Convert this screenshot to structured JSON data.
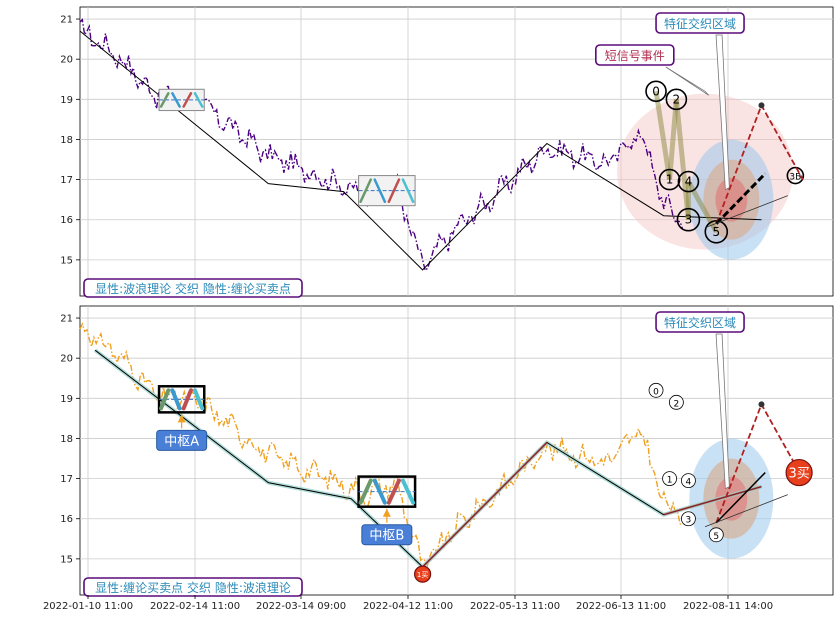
{
  "chart_data": [
    {
      "type": "line",
      "panel": "top",
      "ylim": [
        14.1,
        21.3
      ],
      "yticks": [
        15,
        16,
        17,
        18,
        19,
        20,
        21
      ],
      "grid": true,
      "price_color": "#4b0082",
      "price_style": "dash-dot",
      "trend_polyline": [
        [
          0.0,
          20.7
        ],
        [
          0.25,
          16.9
        ],
        [
          0.35,
          16.7
        ],
        [
          0.455,
          14.75
        ],
        [
          0.62,
          17.9
        ],
        [
          0.775,
          16.1
        ],
        [
          0.905,
          16.0
        ]
      ],
      "pivot_boxes": [
        {
          "x": [
            0.105,
            0.165
          ],
          "y": [
            18.72,
            19.25
          ]
        },
        {
          "x": [
            0.37,
            0.445
          ],
          "y": [
            16.35,
            17.1
          ]
        }
      ],
      "wave_labels": [
        "0",
        "1",
        "2",
        "3",
        "4",
        "5",
        "3B"
      ],
      "callouts": {
        "short_signal": "短信号事件",
        "feature_zone": "特征交织区域"
      },
      "panel_label": "显性:波浪理论 交织 隐性:缠论买卖点"
    },
    {
      "type": "line",
      "panel": "bottom",
      "ylim": [
        14.1,
        21.3
      ],
      "yticks": [
        15,
        16,
        17,
        18,
        19,
        20,
        21
      ],
      "grid": true,
      "price_color": "#f0a020",
      "price_style": "dash-dot",
      "trend_polyline": [
        [
          0.02,
          20.2
        ],
        [
          0.25,
          16.9
        ],
        [
          0.36,
          16.5
        ],
        [
          0.455,
          14.8
        ],
        [
          0.62,
          17.9
        ],
        [
          0.775,
          16.1
        ],
        [
          0.905,
          16.8
        ]
      ],
      "pivot_boxes": [
        {
          "label": "中枢A",
          "x": [
            0.105,
            0.165
          ],
          "y": [
            18.65,
            19.3
          ]
        },
        {
          "label": "中枢B",
          "x": [
            0.37,
            0.445
          ],
          "y": [
            16.3,
            17.05
          ]
        }
      ],
      "wave_labels": [
        "0",
        "1",
        "2",
        "3",
        "4",
        "5"
      ],
      "signals": [
        "1买",
        "3买"
      ],
      "callouts": {
        "feature_zone": "特征交织区域"
      },
      "panel_label": "显性:缠论买卖点 交织 隐性:波浪理论"
    }
  ],
  "x_axis": {
    "tick_labels": [
      "2022-01-10 11:00",
      "2022-02-14 11:00",
      "2022-03-14 09:00",
      "2022-04-12 11:00",
      "2022-05-13 11:00",
      "2022-06-13 11:00",
      "2022-08-11 14:00"
    ]
  },
  "colors": {
    "grid": "#cccccc",
    "callout_border": "#5a0a7a",
    "callout_blue_text": "#2a8ab8",
    "callout_red_text": "#b03050",
    "pivot_label_bg": "#4a7fd8",
    "buy_signal": "#e8401c",
    "zone_pink": "#f4c0c0",
    "zone_blue": "#9cc8ec"
  }
}
